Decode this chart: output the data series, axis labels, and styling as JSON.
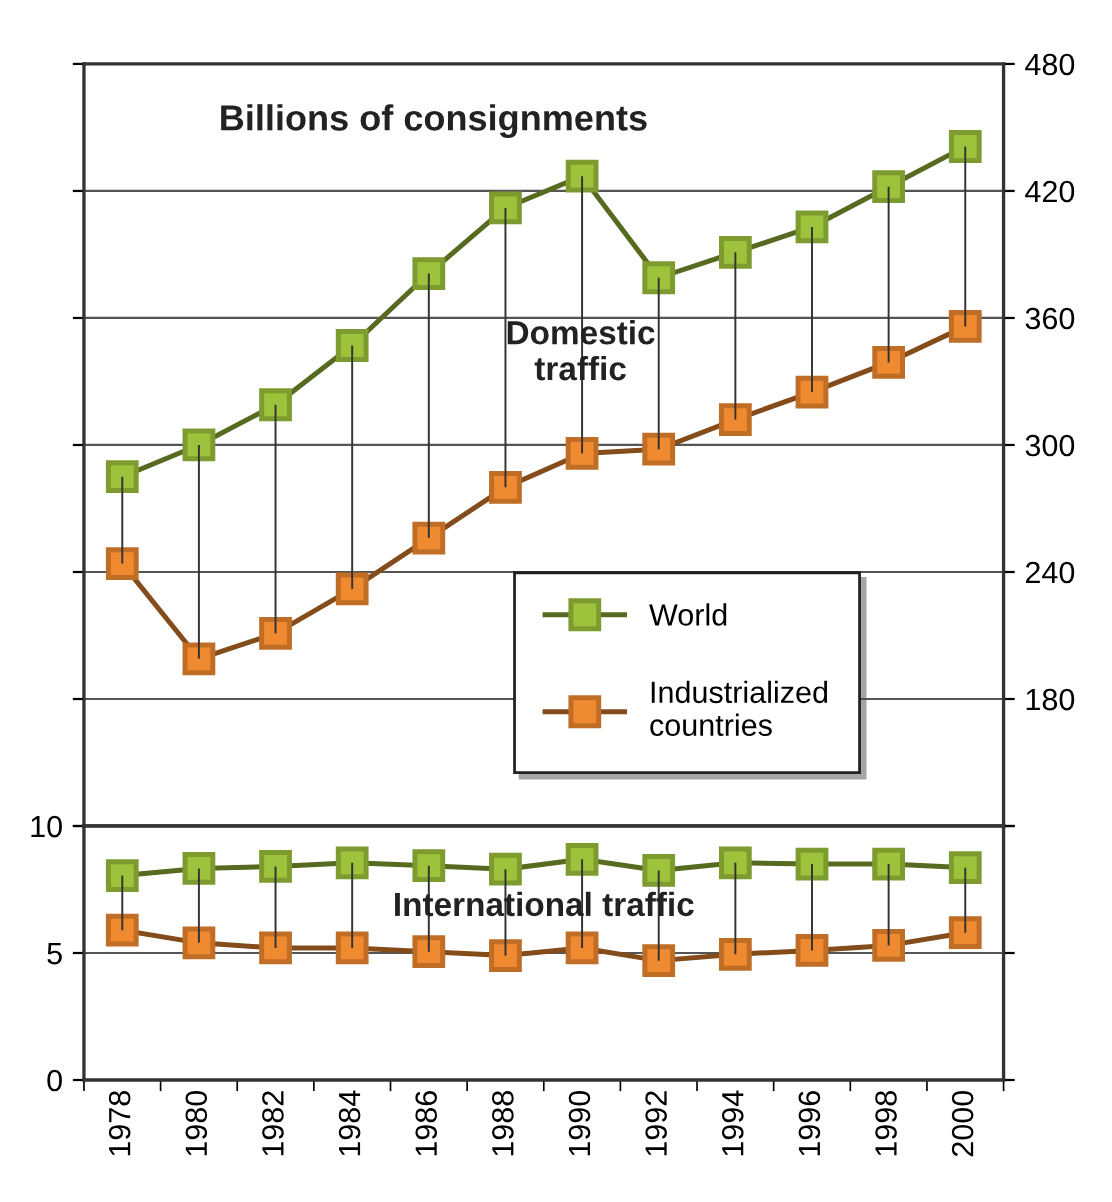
{
  "chart_data": [
    {
      "type": "line",
      "title": "Billions of consignments",
      "categories": [
        "1978",
        "1980",
        "1982",
        "1984",
        "1986",
        "1988",
        "1990",
        "1992",
        "1994",
        "1996",
        "1998",
        "2000"
      ],
      "series": [
        {
          "name": "World",
          "color": "#9dc23b",
          "values": [
            285,
            300,
            319,
            347,
            381,
            412,
            427,
            379,
            391,
            403,
            422,
            441
          ]
        },
        {
          "name": "Industrialized\ncountries",
          "color": "#f08a30",
          "values": [
            244,
            199,
            211,
            232,
            256,
            280,
            296,
            298,
            312,
            325,
            339,
            356
          ],
          "errors": [
            [
              244,
              285
            ],
            [
              199,
              300
            ],
            [
              211,
              319
            ],
            [
              232,
              347
            ],
            [
              256,
              381
            ],
            [
              280,
              412
            ],
            [
              296,
              427
            ],
            [
              298,
              379
            ],
            [
              312,
              391
            ],
            [
              325,
              403
            ],
            [
              339,
              422
            ],
            [
              356,
              441
            ]
          ]
        }
      ],
      "ylim": [
        120,
        480
      ],
      "yticks": [
        {
          "value": 120,
          "label": null
        },
        180,
        240,
        300,
        360,
        420,
        480
      ],
      "grid": "y",
      "legend": "bottom right",
      "marker": "square",
      "tick_labels": "y",
      "annotations": [
        "Domestic\ntraffic"
      ]
    },
    {
      "type": "line",
      "categories": [
        "1978",
        "1980",
        "1982",
        "1984",
        "1986",
        "1988",
        "1990",
        "1992",
        "1994",
        "1996",
        "1998",
        "2000"
      ],
      "series": [
        {
          "color": "#9dc23b",
          "values": [
            8.05,
            8.33,
            8.41,
            8.55,
            8.44,
            8.3,
            8.69,
            8.25,
            8.55,
            8.5,
            8.5,
            8.36
          ]
        },
        {
          "color": "#f08a30",
          "values": [
            5.9,
            5.4,
            5.2,
            5.2,
            5.05,
            4.9,
            5.2,
            4.7,
            4.95,
            5.1,
            5.3,
            5.8
          ],
          "errors": [
            [
              5.9,
              8.05
            ],
            [
              5.4,
              8.33
            ],
            [
              5.2,
              8.41
            ],
            [
              5.2,
              8.55
            ],
            [
              5.05,
              8.44
            ],
            [
              4.9,
              8.3
            ],
            [
              5.2,
              8.69
            ],
            [
              4.7,
              8.25
            ],
            [
              4.95,
              8.55
            ],
            [
              5.1,
              8.5
            ],
            [
              5.3,
              8.5
            ],
            [
              5.8,
              8.36
            ]
          ]
        }
      ],
      "ylim": [
        0,
        10
      ],
      "yticks": [
        0,
        5,
        10
      ],
      "grid": "y",
      "marker": "square",
      "annotations": [
        "International traffic"
      ]
    }
  ]
}
